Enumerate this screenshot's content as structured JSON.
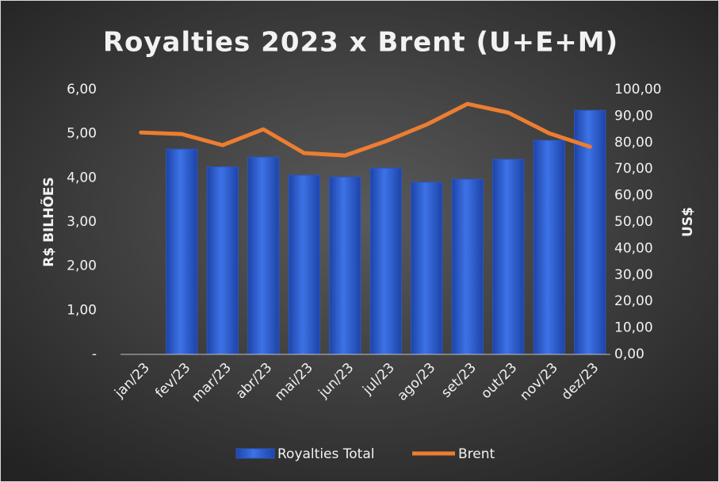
{
  "chart_data": {
    "type": "bar_line",
    "title": "Royalties 2023 x Brent (U+E+M)",
    "categories": [
      "jan/23",
      "fev/23",
      "mar/23",
      "abr/23",
      "mai/23",
      "jun/23",
      "jul/23",
      "ago/23",
      "set/23",
      "out/23",
      "nov/23",
      "dez/23"
    ],
    "series": [
      {
        "name": "Royalties Total",
        "type": "bar",
        "color": "#3566d8",
        "values": [
          null,
          4.65,
          4.25,
          4.47,
          4.06,
          4.02,
          4.22,
          3.9,
          3.97,
          4.42,
          4.85,
          5.53
        ]
      },
      {
        "name": "Brent",
        "type": "line",
        "axis": "y2",
        "color": "#ed7d31",
        "values": [
          83.8,
          83.2,
          79,
          85,
          76,
          75.1,
          80.5,
          86.8,
          94.6,
          91.3,
          83.5,
          78.4
        ]
      }
    ],
    "ylabel": "R$ BILHÕES",
    "y2label": "US$",
    "ylim": [
      0,
      6
    ],
    "yticks": [
      {
        "value": 0,
        "label": "-"
      },
      {
        "value": 1,
        "label": "1,00"
      },
      {
        "value": 2,
        "label": "2,00"
      },
      {
        "value": 3,
        "label": "3,00"
      },
      {
        "value": 4,
        "label": "4,00"
      },
      {
        "value": 5,
        "label": "5,00"
      },
      {
        "value": 6,
        "label": "6,00"
      }
    ],
    "y2lim": [
      0,
      100
    ],
    "y2ticks": [
      {
        "value": 0,
        "label": "0,00"
      },
      {
        "value": 10,
        "label": "10,00"
      },
      {
        "value": 20,
        "label": "20,00"
      },
      {
        "value": 30,
        "label": "30,00"
      },
      {
        "value": 40,
        "label": "40,00"
      },
      {
        "value": 50,
        "label": "50,00"
      },
      {
        "value": 60,
        "label": "60,00"
      },
      {
        "value": 70,
        "label": "70,00"
      },
      {
        "value": 80,
        "label": "80,00"
      },
      {
        "value": 90,
        "label": "90,00"
      },
      {
        "value": 100,
        "label": "100,00"
      }
    ],
    "legend": "bottom"
  }
}
